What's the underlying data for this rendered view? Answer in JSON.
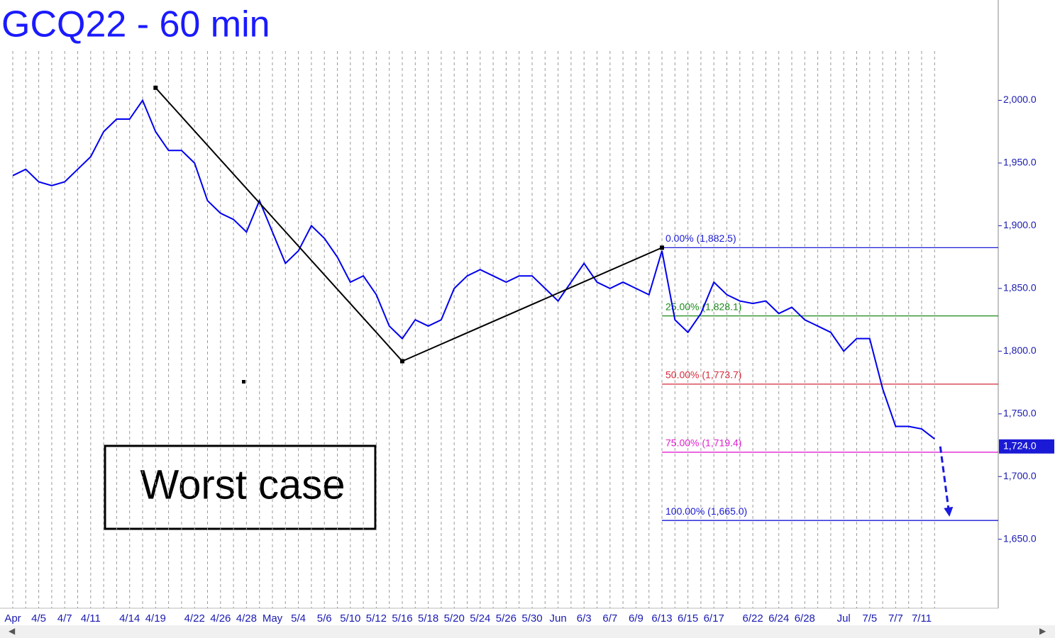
{
  "chart_data": {
    "type": "line",
    "title": "GCQ22 - 60 min",
    "annotation": "Worst case",
    "categories": [
      "Apr",
      null,
      "4/5",
      null,
      "4/7",
      null,
      "4/11",
      null,
      null,
      "4/14",
      null,
      "4/19",
      null,
      null,
      "4/22",
      null,
      "4/26",
      null,
      "4/28",
      null,
      "May",
      null,
      "5/4",
      null,
      "5/6",
      null,
      "5/10",
      null,
      "5/12",
      null,
      "5/16",
      null,
      "5/18",
      null,
      "5/20",
      null,
      "5/24",
      null,
      "5/26",
      null,
      "5/30",
      null,
      "Jun",
      null,
      "6/3",
      null,
      "6/7",
      null,
      "6/9",
      null,
      "6/13",
      null,
      "6/15",
      null,
      "6/17",
      null,
      null,
      "6/22",
      null,
      "6/24",
      null,
      "6/28",
      null,
      null,
      "Jul",
      null,
      "7/5",
      null,
      "7/7",
      null,
      "7/11",
      null
    ],
    "series": [
      {
        "name": "GCQ22",
        "color": "#0000ee",
        "values": [
          1940,
          1945,
          1935,
          1932,
          1935,
          1945,
          1955,
          1975,
          1985,
          1985,
          2000,
          1975,
          1960,
          1960,
          1950,
          1920,
          1910,
          1905,
          1895,
          1920,
          1895,
          1870,
          1880,
          1900,
          1890,
          1875,
          1855,
          1860,
          1845,
          1820,
          1810,
          1825,
          1820,
          1825,
          1850,
          1860,
          1865,
          1860,
          1855,
          1860,
          1860,
          1850,
          1840,
          1855,
          1870,
          1855,
          1850,
          1855,
          1850,
          1845,
          1880,
          1825,
          1815,
          1830,
          1855,
          1845,
          1840,
          1838,
          1840,
          1830,
          1835,
          1825,
          1820,
          1815,
          1800,
          1810,
          1810,
          1770,
          1740,
          1740,
          1738,
          1730
        ]
      }
    ],
    "ylim": [
      1595,
      2080
    ],
    "yticks": [
      {
        "value": 1650,
        "label": "1,650.0"
      },
      {
        "value": 1700,
        "label": "1,700.0"
      },
      {
        "value": 1750,
        "label": "1,750.0"
      },
      {
        "value": 1800,
        "label": "1,800.0"
      },
      {
        "value": 1850,
        "label": "1,850.0"
      },
      {
        "value": 1900,
        "label": "1,900.0"
      },
      {
        "value": 1950,
        "label": "1,950.0"
      },
      {
        "value": 2000,
        "label": "2,000.0"
      }
    ],
    "last_price": {
      "value": 1724,
      "label": "1,724.0"
    },
    "fib_levels": [
      {
        "label": "0.00% (1,882.5)",
        "value": 1882.5,
        "color": "#1a1ad6"
      },
      {
        "label": "25.00% (1,828.1)",
        "value": 1828.1,
        "color": "#1a8a1a"
      },
      {
        "label": "50.00% (1,773.7)",
        "value": 1773.7,
        "color": "#d62a3a"
      },
      {
        "label": "75.00% (1,719.4)",
        "value": 1719.4,
        "color": "#e020d0"
      },
      {
        "label": "100.00% (1,665.0)",
        "value": 1665,
        "color": "#1a1ad6"
      }
    ],
    "zigzag": {
      "categories": [
        "4/19",
        "5/16",
        "6/13"
      ],
      "values": [
        2010,
        1792,
        1882.5
      ],
      "color": "#000000"
    },
    "projection": {
      "values": [
        1724,
        1668
      ],
      "color": "#1a1ae0"
    },
    "grid": true
  }
}
